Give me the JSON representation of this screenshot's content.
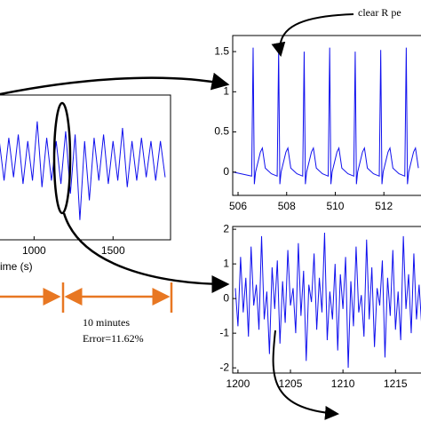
{
  "chart_data": [
    {
      "type": "line",
      "xlabel": "ime (s)",
      "color": "#1010ee",
      "x": [
        780,
        810,
        840,
        870,
        900,
        930,
        960,
        990,
        1020,
        1050,
        1080,
        1110,
        1140,
        1170,
        1200,
        1230,
        1260,
        1290,
        1320,
        1350,
        1380,
        1410,
        1440,
        1470,
        1500,
        1530,
        1560,
        1590,
        1620,
        1650,
        1680,
        1710,
        1740,
        1770,
        1800,
        1830
      ],
      "values": [
        0.3,
        -0.3,
        0.35,
        -0.25,
        0.4,
        -0.35,
        0.3,
        -0.3,
        0.6,
        -0.4,
        0.35,
        -0.3,
        0.3,
        -0.35,
        0.45,
        -0.5,
        0.4,
        -0.9,
        0.3,
        -0.6,
        0.35,
        -0.3,
        0.4,
        -0.35,
        0.3,
        -0.3,
        0.5,
        -0.4,
        0.3,
        -0.3,
        0.35,
        -0.25,
        0.3,
        -0.3,
        0.3,
        -0.25
      ],
      "xlim": [
        773,
        1864
      ],
      "ylim": [
        -1.2,
        1.0
      ],
      "xticks": [
        1000,
        1500
      ]
    },
    {
      "type": "line",
      "color": "#1010ee",
      "x": [
        505.8,
        506.56,
        506.62,
        506.67,
        506.72,
        506.92,
        507.0,
        507.12,
        507.37,
        507.61,
        507.67,
        507.72,
        507.77,
        507.97,
        508.05,
        508.17,
        508.42,
        508.66,
        508.72,
        508.77,
        508.82,
        509.02,
        509.1,
        509.22,
        509.47,
        509.71,
        509.77,
        509.82,
        509.87,
        510.07,
        510.15,
        510.27,
        510.52,
        510.76,
        510.82,
        510.87,
        510.92,
        511.12,
        511.2,
        511.32,
        511.57,
        511.81,
        511.87,
        511.92,
        511.97,
        512.17,
        512.25,
        512.37,
        512.62,
        512.86,
        512.92,
        512.97,
        513.02,
        513.22,
        513.3,
        513.42
      ],
      "values": [
        0.0,
        -0.05,
        1.55,
        -0.15,
        0.0,
        0.25,
        0.3,
        0.05,
        -0.02,
        -0.05,
        1.52,
        -0.15,
        0.0,
        0.25,
        0.3,
        0.05,
        -0.02,
        -0.05,
        1.5,
        -0.15,
        0.0,
        0.25,
        0.3,
        0.05,
        -0.02,
        -0.05,
        1.55,
        -0.15,
        0.0,
        0.25,
        0.3,
        0.05,
        -0.02,
        -0.05,
        1.5,
        -0.15,
        0.0,
        0.25,
        0.3,
        0.05,
        -0.02,
        -0.05,
        1.52,
        -0.15,
        0.0,
        0.25,
        0.3,
        0.05,
        -0.02,
        -0.05,
        1.55,
        -0.15,
        0.0,
        0.25,
        0.3,
        0.05
      ],
      "xlim": [
        505.78,
        513.6
      ],
      "ylim": [
        -0.29,
        1.7
      ],
      "xticks": [
        506,
        508,
        510,
        512
      ],
      "yticks": [
        0,
        0.5,
        1,
        1.5
      ]
    },
    {
      "type": "line",
      "color": "#1010ee",
      "x": [
        1199.75,
        1200,
        1200.25,
        1200.5,
        1200.75,
        1201,
        1201.25,
        1201.5,
        1201.75,
        1202,
        1202.25,
        1202.5,
        1202.75,
        1203,
        1203.25,
        1203.5,
        1203.75,
        1204,
        1204.25,
        1204.5,
        1204.75,
        1205,
        1205.25,
        1205.5,
        1205.75,
        1206,
        1206.25,
        1206.5,
        1206.75,
        1207,
        1207.25,
        1207.5,
        1207.75,
        1208,
        1208.25,
        1208.5,
        1208.75,
        1209,
        1209.25,
        1209.5,
        1209.75,
        1210,
        1210.25,
        1210.5,
        1210.75,
        1211,
        1211.25,
        1211.5,
        1211.75,
        1212,
        1212.25,
        1212.5,
        1212.75,
        1213,
        1213.25,
        1213.5,
        1213.75,
        1214,
        1214.25,
        1214.5,
        1214.75,
        1215,
        1215.25,
        1215.5,
        1215.75,
        1216,
        1216.25,
        1216.5,
        1216.75,
        1217,
        1217.25,
        1217.5
      ],
      "values": [
        0.3,
        -0.8,
        1.2,
        -0.4,
        0.6,
        -1.1,
        1.5,
        -0.2,
        0.4,
        -0.9,
        1.8,
        -0.6,
        0.2,
        -1.6,
        0.9,
        -0.3,
        1.1,
        -1.3,
        0.5,
        -0.7,
        1.4,
        -0.2,
        0.3,
        -1.0,
        1.6,
        -0.5,
        0.8,
        -1.8,
        0.4,
        -0.1,
        1.3,
        -0.9,
        0.6,
        -0.4,
        1.9,
        -1.2,
        0.2,
        -0.6,
        1.0,
        -1.5,
        0.7,
        -0.3,
        1.2,
        -2.0,
        0.5,
        -0.8,
        1.5,
        -0.4,
        0.1,
        -1.1,
        1.7,
        -0.6,
        0.9,
        -1.4,
        0.3,
        -0.2,
        1.1,
        -1.7,
        0.6,
        -0.5,
        1.4,
        -0.9,
        0.2,
        -1.2,
        1.8,
        -0.3,
        0.7,
        -1.0,
        1.3,
        -0.6,
        0.4,
        -0.8
      ],
      "xlim": [
        1199.5,
        1217.6
      ],
      "ylim": [
        -2.15,
        2.08
      ],
      "xticks": [
        1200,
        1205,
        1210,
        1215
      ],
      "yticks": [
        -2,
        -1,
        0,
        1,
        2
      ]
    }
  ],
  "annotations": [
    "clear R pe",
    "10 minutes",
    "Error=11.62%"
  ]
}
